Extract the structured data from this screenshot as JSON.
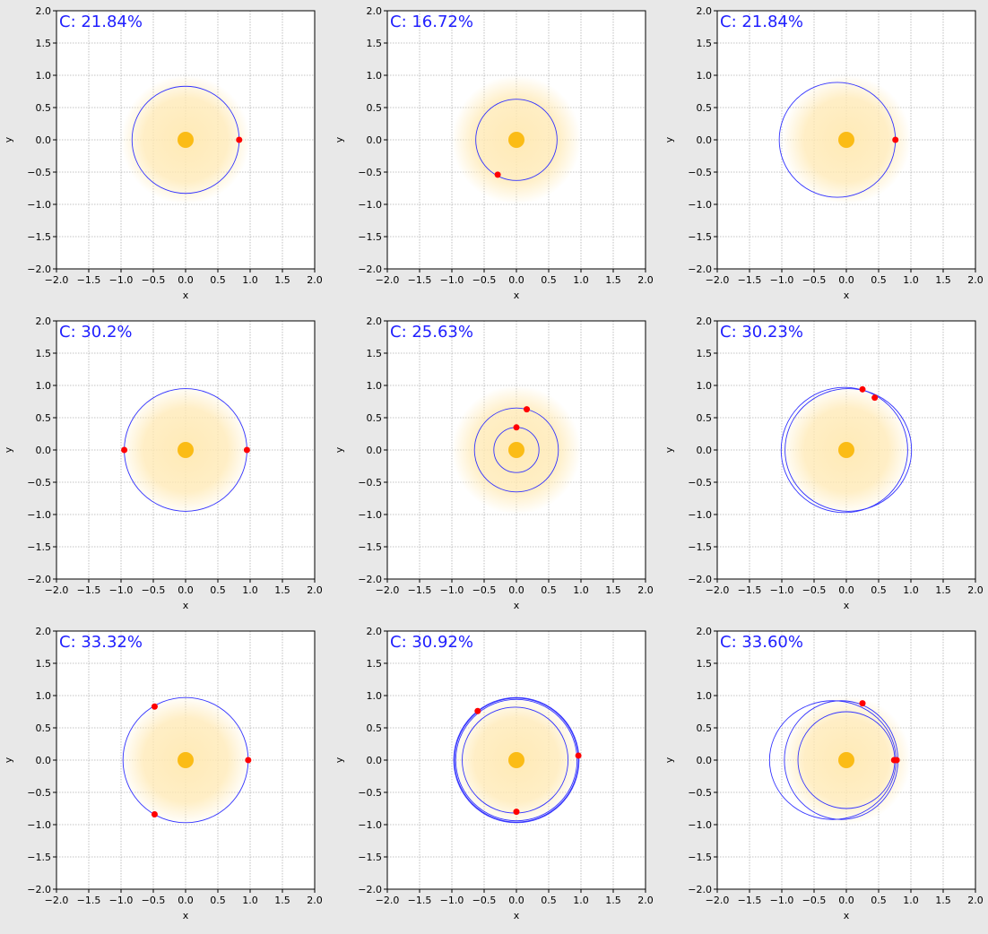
{
  "colors": {
    "background": "#e8e8e8",
    "plot_face": "#ffffff",
    "grid": "#b0b0b0",
    "orbit": "#3333ff",
    "planet": "#ff0000",
    "star": "#fbbc16",
    "glow": "#ffe9b3",
    "coverage_text": "#2020ff"
  },
  "chart_data": [
    {
      "type": "scatter",
      "title": "C: 21.84%",
      "xlabel": "x",
      "ylabel": "y",
      "xlim": [
        -2.0,
        2.0
      ],
      "ylim": [
        -2.0,
        2.0
      ],
      "xticks": [
        "−2.0",
        "−1.5",
        "−1.0",
        "−0.5",
        "0.0",
        "0.5",
        "1.0",
        "1.5",
        "2.0"
      ],
      "yticks": [
        "2.0",
        "1.5",
        "1.0",
        "0.5",
        "0.0",
        "−0.5",
        "−1.0",
        "−1.5",
        "−2.0"
      ],
      "grid": true,
      "glow_radius": 1.0,
      "orbits": [
        {
          "cx": 0.0,
          "cy": 0.0,
          "rx": 0.83,
          "ry": 0.83
        }
      ],
      "planets": [
        {
          "x": 0.83,
          "y": 0.0
        }
      ]
    },
    {
      "type": "scatter",
      "title": "C: 16.72%",
      "xlabel": "x",
      "ylabel": "y",
      "xlim": [
        -2.0,
        2.0
      ],
      "ylim": [
        -2.0,
        2.0
      ],
      "xticks": [
        "−2.0",
        "−1.5",
        "−1.0",
        "−0.5",
        "0.0",
        "0.5",
        "1.0",
        "1.5",
        "2.0"
      ],
      "yticks": [
        "2.0",
        "1.5",
        "1.0",
        "0.5",
        "0.0",
        "−0.5",
        "−1.0",
        "−1.5",
        "−2.0"
      ],
      "grid": true,
      "glow_radius": 1.0,
      "orbits": [
        {
          "cx": 0.0,
          "cy": 0.0,
          "rx": 0.63,
          "ry": 0.63
        }
      ],
      "planets": [
        {
          "x": -0.29,
          "y": -0.54
        }
      ]
    },
    {
      "type": "scatter",
      "title": "C: 21.84%",
      "xlabel": "x",
      "ylabel": "y",
      "xlim": [
        -2.0,
        2.0
      ],
      "ylim": [
        -2.0,
        2.0
      ],
      "xticks": [
        "−2.0",
        "−1.5",
        "−1.0",
        "−0.5",
        "0.0",
        "0.5",
        "1.0",
        "1.5",
        "2.0"
      ],
      "yticks": [
        "2.0",
        "1.5",
        "1.0",
        "0.5",
        "0.0",
        "−0.5",
        "−1.0",
        "−1.5",
        "−2.0"
      ],
      "grid": true,
      "glow_radius": 1.0,
      "orbits": [
        {
          "cx": -0.14,
          "cy": 0.0,
          "rx": 0.9,
          "ry": 0.89
        }
      ],
      "planets": [
        {
          "x": 0.76,
          "y": 0.0
        }
      ]
    },
    {
      "type": "scatter",
      "title": "C: 30.2%",
      "xlabel": "x",
      "ylabel": "y",
      "xlim": [
        -2.0,
        2.0
      ],
      "ylim": [
        -2.0,
        2.0
      ],
      "xticks": [
        "−2.0",
        "−1.5",
        "−1.0",
        "−0.5",
        "0.0",
        "0.5",
        "1.0",
        "1.5",
        "2.0"
      ],
      "yticks": [
        "2.0",
        "1.5",
        "1.0",
        "0.5",
        "0.0",
        "−0.5",
        "−1.0",
        "−1.5",
        "−2.0"
      ],
      "grid": true,
      "glow_radius": 1.0,
      "orbits": [
        {
          "cx": 0.0,
          "cy": 0.0,
          "rx": 0.95,
          "ry": 0.95
        }
      ],
      "planets": [
        {
          "x": -0.95,
          "y": 0.0
        },
        {
          "x": 0.95,
          "y": 0.0
        }
      ]
    },
    {
      "type": "scatter",
      "title": "C: 25.63%",
      "xlabel": "x",
      "ylabel": "y",
      "xlim": [
        -2.0,
        2.0
      ],
      "ylim": [
        -2.0,
        2.0
      ],
      "xticks": [
        "−2.0",
        "−1.5",
        "−1.0",
        "−0.5",
        "0.0",
        "0.5",
        "1.0",
        "1.5",
        "2.0"
      ],
      "yticks": [
        "2.0",
        "1.5",
        "1.0",
        "0.5",
        "0.0",
        "−0.5",
        "−1.0",
        "−1.5",
        "−2.0"
      ],
      "grid": true,
      "glow_radius": 1.0,
      "orbits": [
        {
          "cx": 0.0,
          "cy": 0.0,
          "rx": 0.35,
          "ry": 0.35
        },
        {
          "cx": 0.0,
          "cy": 0.0,
          "rx": 0.65,
          "ry": 0.65
        }
      ],
      "planets": [
        {
          "x": 0.0,
          "y": 0.35
        },
        {
          "x": 0.16,
          "y": 0.63
        }
      ]
    },
    {
      "type": "scatter",
      "title": "C: 30.23%",
      "xlabel": "x",
      "ylabel": "y",
      "xlim": [
        -2.0,
        2.0
      ],
      "ylim": [
        -2.0,
        2.0
      ],
      "xticks": [
        "−2.0",
        "−1.5",
        "−1.0",
        "−0.5",
        "0.0",
        "0.5",
        "1.0",
        "1.5",
        "2.0"
      ],
      "yticks": [
        "2.0",
        "1.5",
        "1.0",
        "0.5",
        "0.0",
        "−0.5",
        "−1.0",
        "−1.5",
        "−2.0"
      ],
      "grid": true,
      "glow_radius": 1.0,
      "orbits": [
        {
          "cx": -0.03,
          "cy": 0.0,
          "rx": 0.98,
          "ry": 0.97
        },
        {
          "cx": 0.03,
          "cy": 0.0,
          "rx": 0.98,
          "ry": 0.95
        }
      ],
      "planets": [
        {
          "x": 0.25,
          "y": 0.94
        },
        {
          "x": 0.44,
          "y": 0.81
        }
      ]
    },
    {
      "type": "scatter",
      "title": "C: 33.32%",
      "xlabel": "x",
      "ylabel": "y",
      "xlim": [
        -2.0,
        2.0
      ],
      "ylim": [
        -2.0,
        2.0
      ],
      "xticks": [
        "−2.0",
        "−1.5",
        "−1.0",
        "−0.5",
        "0.0",
        "0.5",
        "1.0",
        "1.5",
        "2.0"
      ],
      "yticks": [
        "2.0",
        "1.5",
        "1.0",
        "0.5",
        "0.0",
        "−0.5",
        "−1.0",
        "−1.5",
        "−2.0"
      ],
      "grid": true,
      "glow_radius": 1.0,
      "orbits": [
        {
          "cx": 0.0,
          "cy": 0.0,
          "rx": 0.97,
          "ry": 0.97
        }
      ],
      "planets": [
        {
          "x": -0.48,
          "y": 0.83
        },
        {
          "x": 0.97,
          "y": 0.0
        },
        {
          "x": -0.48,
          "y": -0.84
        }
      ]
    },
    {
      "type": "scatter",
      "title": "C: 30.92%",
      "xlabel": "x",
      "ylabel": "y",
      "xlim": [
        -2.0,
        2.0
      ],
      "ylim": [
        -2.0,
        2.0
      ],
      "xticks": [
        "−2.0",
        "−1.5",
        "−1.0",
        "−0.5",
        "0.0",
        "0.5",
        "1.0",
        "1.5",
        "2.0"
      ],
      "yticks": [
        "2.0",
        "1.5",
        "1.0",
        "0.5",
        "0.0",
        "−0.5",
        "−1.0",
        "−1.5",
        "−2.0"
      ],
      "grid": true,
      "glow_radius": 1.0,
      "orbits": [
        {
          "cx": 0.0,
          "cy": 0.0,
          "rx": 0.96,
          "ry": 0.96
        },
        {
          "cx": 0.0,
          "cy": 0.0,
          "rx": 0.94,
          "ry": 0.94
        },
        {
          "cx": 0.0,
          "cy": 0.0,
          "rx": 0.97,
          "ry": 0.97
        },
        {
          "cx": -0.02,
          "cy": 0.0,
          "rx": 0.82,
          "ry": 0.82
        }
      ],
      "planets": [
        {
          "x": -0.6,
          "y": 0.76
        },
        {
          "x": 0.96,
          "y": 0.07
        },
        {
          "x": 0.0,
          "y": -0.8
        }
      ]
    },
    {
      "type": "scatter",
      "title": "C: 33.60%",
      "xlabel": "x",
      "ylabel": "y",
      "xlim": [
        -2.0,
        2.0
      ],
      "ylim": [
        -2.0,
        2.0
      ],
      "xticks": [
        "−2.0",
        "−1.5",
        "−1.0",
        "−0.5",
        "0.0",
        "0.5",
        "1.0",
        "1.5",
        "2.0"
      ],
      "yticks": [
        "2.0",
        "1.5",
        "1.0",
        "0.5",
        "0.0",
        "−0.5",
        "−1.0",
        "−1.5",
        "−2.0"
      ],
      "grid": true,
      "glow_radius": 1.0,
      "orbits": [
        {
          "cx": -0.21,
          "cy": 0.0,
          "rx": 0.98,
          "ry": 0.92
        },
        {
          "cx": -0.08,
          "cy": 0.0,
          "rx": 0.88,
          "ry": 0.92
        },
        {
          "cx": 0.0,
          "cy": 0.0,
          "rx": 0.75,
          "ry": 0.75
        }
      ],
      "planets": [
        {
          "x": 0.25,
          "y": 0.88
        },
        {
          "x": 0.74,
          "y": 0.0
        },
        {
          "x": 0.78,
          "y": 0.0
        }
      ]
    }
  ]
}
